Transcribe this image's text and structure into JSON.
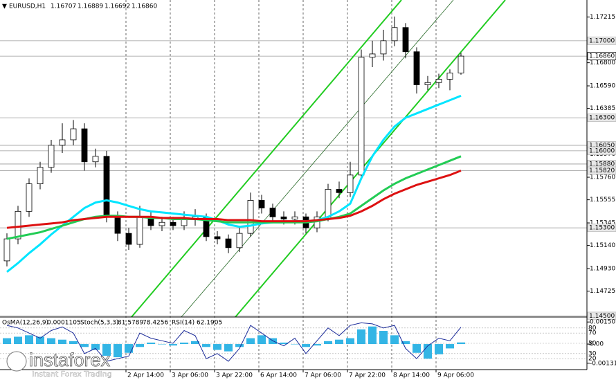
{
  "chart_data": {
    "type": "candlestick",
    "symbol": "EURUSD,H1",
    "categories": [
      null,
      null,
      null,
      null,
      null,
      null,
      null,
      null,
      null,
      null,
      null,
      "2 Apr 14:00",
      null,
      null,
      null,
      "3 Apr 06:00",
      null,
      null,
      null,
      "3 Apr 22:00",
      null,
      null,
      null,
      "6 Apr 14:00",
      null,
      null,
      null,
      "7 Apr 06:00",
      null,
      null,
      null,
      "7 Apr 22:00",
      null,
      null,
      null,
      "8 Apr 14:00",
      null,
      null,
      null,
      "9 Apr 06:00",
      null,
      null
    ],
    "open": [
      1.15,
      1.152,
      1.1545,
      1.157,
      1.1585,
      1.1605,
      1.161,
      1.162,
      1.159,
      1.1595,
      1.154,
      1.1525,
      1.1515,
      1.154,
      1.1532,
      1.1535,
      1.1532,
      1.1538,
      1.154,
      1.1522,
      1.152,
      1.1512,
      1.1525,
      1.1555,
      1.1548,
      1.154,
      1.1538,
      1.154,
      1.153,
      1.154,
      1.1565,
      1.1562,
      1.1578,
      1.1685,
      1.1688,
      1.17,
      1.1712,
      1.169,
      1.166,
      1.1662,
      1.1665,
      1.16707
    ],
    "high": [
      1.1525,
      1.155,
      1.1575,
      1.159,
      1.161,
      1.1625,
      1.1628,
      1.1625,
      1.1602,
      1.16,
      1.1545,
      1.153,
      1.155,
      1.1545,
      1.154,
      1.154,
      1.1545,
      1.1547,
      1.1543,
      1.1527,
      1.1524,
      1.153,
      1.1562,
      1.156,
      1.1552,
      1.1545,
      1.1545,
      1.1543,
      1.1545,
      1.157,
      1.1572,
      1.159,
      1.1692,
      1.17,
      1.171,
      1.1722,
      1.1716,
      1.1694,
      1.1668,
      1.167,
      1.1674,
      1.16889
    ],
    "low": [
      1.1495,
      1.1515,
      1.154,
      1.1565,
      1.158,
      1.1598,
      1.1605,
      1.1582,
      1.1585,
      1.1535,
      1.1518,
      1.151,
      1.1512,
      1.1528,
      1.1527,
      1.1528,
      1.1528,
      1.1532,
      1.1518,
      1.1515,
      1.1507,
      1.1508,
      1.1522,
      1.1543,
      1.1535,
      1.1533,
      1.1533,
      1.1525,
      1.1526,
      1.1536,
      1.1557,
      1.1558,
      1.1575,
      1.1676,
      1.1682,
      1.1695,
      1.1684,
      1.1652,
      1.1655,
      1.1657,
      1.1655,
      1.16692
    ],
    "close": [
      1.152,
      1.1545,
      1.157,
      1.1585,
      1.1605,
      1.161,
      1.162,
      1.159,
      1.1595,
      1.154,
      1.1525,
      1.1515,
      1.154,
      1.1532,
      1.1535,
      1.1532,
      1.1538,
      1.154,
      1.1522,
      1.152,
      1.1512,
      1.1525,
      1.1555,
      1.1548,
      1.154,
      1.1538,
      1.154,
      1.153,
      1.154,
      1.1565,
      1.1562,
      1.1578,
      1.1685,
      1.1688,
      1.17,
      1.1712,
      1.169,
      1.166,
      1.1662,
      1.1665,
      1.16707,
      1.1686
    ],
    "series": [
      {
        "color": "#00e5ff",
        "values": [
          1.149,
          1.1498,
          1.1507,
          1.1515,
          1.1524,
          1.1532,
          1.154,
          1.1548,
          1.1553,
          1.1555,
          1.1553,
          1.155,
          1.1547,
          1.1545,
          1.1544,
          1.1543,
          1.1542,
          1.1541,
          1.154,
          1.1537,
          1.1533,
          1.1531,
          1.1532,
          1.1534,
          1.1535,
          1.1535,
          1.1536,
          1.1536,
          1.1537,
          1.154,
          1.1545,
          1.1552,
          1.1575,
          1.1595,
          1.161,
          1.1622,
          1.163,
          1.1634,
          1.1638,
          1.1642,
          1.1646,
          1.165
        ]
      },
      {
        "color": "#22cc55",
        "values": [
          1.152,
          1.1522,
          1.1524,
          1.1526,
          1.1529,
          1.1532,
          1.1535,
          1.1538,
          1.154,
          1.1541,
          1.1541,
          1.154,
          1.154,
          1.1539,
          1.1539,
          1.1538,
          1.1538,
          1.1538,
          1.1537,
          1.1536,
          1.1535,
          1.1535,
          1.1535,
          1.1535,
          1.1535,
          1.1535,
          1.1535,
          1.1535,
          1.1536,
          1.1538,
          1.154,
          1.1543,
          1.155,
          1.1557,
          1.1564,
          1.157,
          1.1575,
          1.1579,
          1.1583,
          1.1587,
          1.1591,
          1.1595
        ]
      },
      {
        "color": "#dd1111",
        "values": [
          1.153,
          1.1531,
          1.1532,
          1.1533,
          1.1534,
          1.1535,
          1.1537,
          1.1538,
          1.1539,
          1.154,
          1.154,
          1.154,
          1.154,
          1.154,
          1.1539,
          1.1539,
          1.1539,
          1.1538,
          1.1538,
          1.1538,
          1.1537,
          1.1537,
          1.1537,
          1.1536,
          1.1536,
          1.1536,
          1.1536,
          1.1536,
          1.1537,
          1.1538,
          1.1539,
          1.1541,
          1.1545,
          1.155,
          1.1556,
          1.1561,
          1.1565,
          1.1569,
          1.1572,
          1.1575,
          1.1578,
          1.1582
        ]
      }
    ],
    "ylim": [
      1.1449,
      1.1737
    ],
    "yticks": [
      1.17215,
      {
        "value": 1.168,
        "label": "1.16800"
      },
      {
        "value": 1.1659,
        "label": "1.16590"
      },
      1.16385,
      {
        "value": 1.1597,
        "label": "1.15970"
      },
      {
        "value": 1.1576,
        "label": "1.15760"
      },
      1.15555,
      1.15345,
      {
        "value": 1.1514,
        "label": "1.15140"
      },
      {
        "value": 1.1493,
        "label": "1.14930"
      },
      1.14725
    ],
    "levels": [
      {
        "value": 1.17,
        "label": "1.17000"
      },
      {
        "value": 1.1686,
        "label": "1.16860"
      },
      {
        "value": 1.163,
        "label": "1.16300"
      },
      {
        "value": 1.1605,
        "label": "1.16050"
      },
      {
        "value": 1.16,
        "label": "1.16000"
      },
      {
        "value": 1.1588,
        "label": "1.15880"
      },
      {
        "value": 1.1582,
        "label": "1.15820"
      },
      {
        "value": 1.153,
        "label": "1.15300"
      },
      {
        "value": 1.145,
        "label": "1.14500"
      }
    ],
    "indicator": {
      "osma_name": "OsMA(12,26,9)",
      "osma": [
        0.0004,
        0.0005,
        0.0006,
        0.0005,
        0.0004,
        0.0003,
        0.0002,
        -0.0002,
        -0.0004,
        -0.0008,
        -0.0009,
        -0.0006,
        -0.0002,
        0.0001,
        0.0,
        -0.0001,
        0.0001,
        0.0002,
        -0.0002,
        -0.0004,
        -0.0005,
        -0.0002,
        0.0004,
        0.0006,
        0.0004,
        0.0001,
        0.0,
        -0.0002,
        -0.0001,
        0.0002,
        0.0003,
        0.0004,
        0.001,
        0.0012,
        0.0009,
        0.0006,
        0.0002,
        -0.0006,
        -0.001,
        -0.0007,
        -0.0003,
        0.0001105
      ],
      "osma_color": "#33b5e5",
      "osma_lim": [
        -0.0017,
        0.0018
      ],
      "osma_ticks": [
        0.001507,
        {
          "value": 0,
          "label": "0.00"
        },
        {
          "value": -0.00131,
          "label": "-0.001310"
        }
      ],
      "stoch_name": "Stoch(5,3,3)",
      "stoch": [
        85,
        80,
        70,
        60,
        75,
        82,
        70,
        30,
        40,
        15,
        20,
        25,
        70,
        60,
        55,
        50,
        75,
        65,
        20,
        30,
        15,
        40,
        85,
        70,
        55,
        45,
        60,
        30,
        55,
        80,
        65,
        85,
        90,
        88,
        80,
        85,
        40,
        20,
        45,
        60,
        55,
        81.5789
      ],
      "stoch_signal_last": "78.4256",
      "stoch_color": "#1a2a99",
      "stoch_lim": [
        0,
        100
      ],
      "stoch_ticks": [
        80,
        70,
        50,
        30,
        20
      ],
      "rsi_text": "RSI(14) 62.1905"
    },
    "logo": "instaforex",
    "logo_tagline": "Instant Forex Trading"
  }
}
